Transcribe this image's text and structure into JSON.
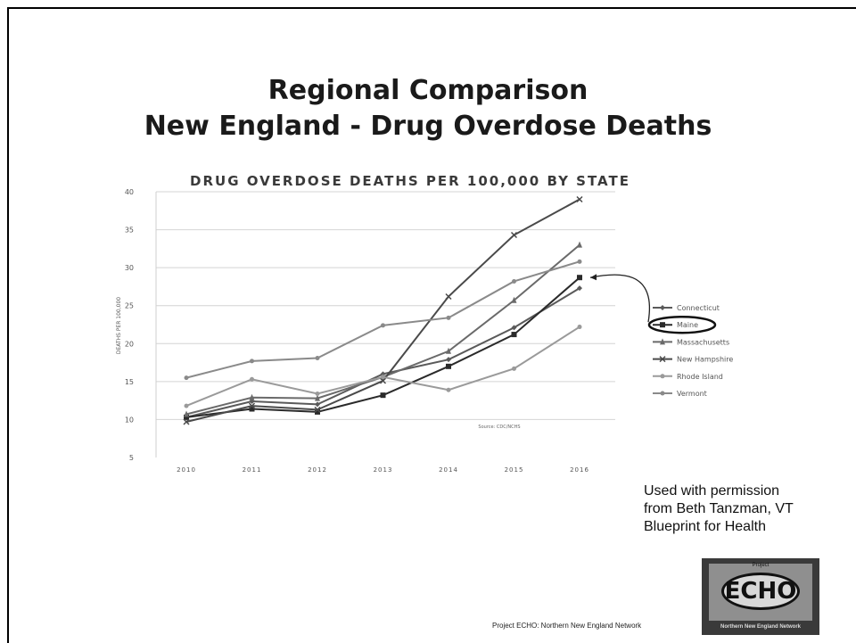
{
  "slide": {
    "title_line1": "Regional Comparison",
    "title_line2": "New England - Drug Overdose Deaths",
    "credit_line1": "Used with permission",
    "credit_line2": "from Beth Tanzman, VT",
    "credit_line3": "Blueprint for Health",
    "footer": "Project ECHO: Northern New England Network",
    "logo": {
      "small_text": "Project",
      "main_text": "ECHO",
      "strip_text": "Northern New England Network"
    }
  },
  "chart_data": {
    "type": "line",
    "title": "DRUG OVERDOSE DEATHS PER 100,000 BY STATE",
    "ylabel": "DEATHS PER 100,000",
    "xlabel": "",
    "x": [
      "2010",
      "2011",
      "2012",
      "2013",
      "2014",
      "2015",
      "2016"
    ],
    "ylim": [
      5,
      40
    ],
    "yticks": [
      5,
      10,
      15,
      20,
      25,
      30,
      35,
      40
    ],
    "grid": true,
    "source_note": "Source: CDC/NCHS",
    "legend_position": "right",
    "highlighted_series": "Maine",
    "series": [
      {
        "name": "Connecticut",
        "values": [
          10.3,
          12.4,
          12.0,
          16.0,
          17.9,
          22.1,
          27.3
        ],
        "marker": "diamond"
      },
      {
        "name": "Maine",
        "values": [
          10.3,
          11.4,
          11.0,
          13.2,
          17.0,
          21.2,
          28.7
        ],
        "marker": "square"
      },
      {
        "name": "Massachusetts",
        "values": [
          10.7,
          12.9,
          12.8,
          15.6,
          19.0,
          25.7,
          33.0
        ],
        "marker": "triangle"
      },
      {
        "name": "New Hampshire",
        "values": [
          9.7,
          11.8,
          11.3,
          15.1,
          26.2,
          34.3,
          39.0
        ],
        "marker": "x"
      },
      {
        "name": "Rhode Island",
        "values": [
          11.8,
          15.3,
          13.4,
          15.6,
          13.9,
          16.7,
          22.2
        ],
        "marker": "circle"
      },
      {
        "name": "Vermont",
        "values": [
          15.5,
          17.7,
          18.1,
          22.4,
          23.4,
          28.2,
          30.8
        ],
        "marker": "circle"
      }
    ]
  }
}
